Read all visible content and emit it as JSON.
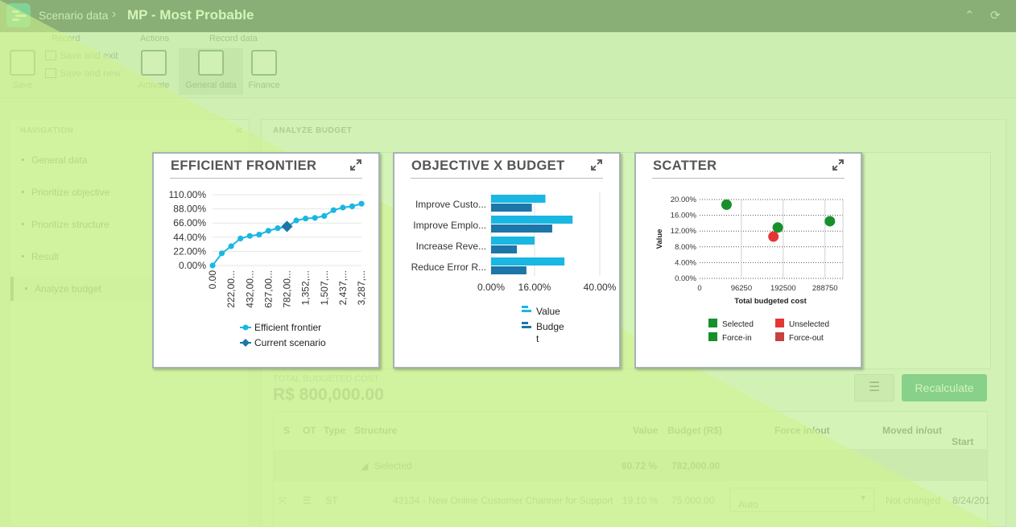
{
  "header": {
    "breadcrumb": "Scenario data",
    "title": "MP - Most Probable"
  },
  "ribbon": {
    "groups": [
      "Record",
      "Actions",
      "Record data"
    ],
    "save": "Save",
    "save_and_exit": "Save and exit",
    "save_and_new": "Save and new",
    "activate": "Activate",
    "general_data": "General data",
    "finance": "Finance"
  },
  "navigation": {
    "heading": "NAVIGATION",
    "items": [
      "General data",
      "Prioritize objective",
      "Prioritize structure",
      "Result",
      "Analyze budget"
    ],
    "active_index": 4
  },
  "main": {
    "heading": "ANALYZE BUDGET",
    "total_label": "TOTAL BUDGETED COST",
    "total_value": "R$ 800,000.00",
    "recalculate": "Recalculate",
    "table": {
      "headers": [
        "S",
        "OT",
        "Type",
        "Structure",
        "Value",
        "Budget (R$)",
        "Force in/out",
        "Moved in/out",
        "Start"
      ],
      "group": {
        "label": "Selected",
        "value": "60.72 %",
        "budget": "782,000.00"
      },
      "row": {
        "type": "ST",
        "structure": "43134 - New Online Customer Channer for Support",
        "value": "19.10 %",
        "budget": "75,000.00",
        "force": "Auto",
        "moved": "Not changed",
        "start": "8/24/201"
      }
    }
  },
  "overlay_color": "#b9ee8a",
  "accent": "#1ab7e2",
  "charts": {
    "frontier": {
      "title": "EFFICIENT FRONTIER",
      "y_ticks": [
        "110.00%",
        "88.00%",
        "66.00%",
        "44.00%",
        "22.00%",
        "0.00%"
      ],
      "x_ticks": [
        "0.00",
        "222,00...",
        "432,00...",
        "627,00...",
        "782,00...",
        "1,352,...",
        "1,507,...",
        "2,437,...",
        "3,287,..."
      ],
      "legend": [
        "Efficient frontier",
        "Current scenario"
      ]
    },
    "objective": {
      "title": "OBJECTIVE X BUDGET",
      "x_ticks": [
        "0.00%",
        "16.00%",
        "40.00%"
      ],
      "legend": [
        "Value",
        "Budget"
      ]
    },
    "scatter": {
      "title": "SCATTER",
      "ylabel": "Value",
      "xlabel": "Total budgeted cost",
      "y_ticks": [
        "20.00%",
        "16.00%",
        "12.00%",
        "8.00%",
        "4.00%",
        "0.00%"
      ],
      "x_ticks": [
        "0",
        "96250",
        "192500",
        "288750"
      ],
      "legend": [
        "Selected",
        "Unselected",
        "Force-in",
        "Force-out"
      ]
    }
  },
  "chart_data": [
    {
      "type": "line",
      "title": "EFFICIENT FRONTIER",
      "ylim": [
        0,
        110
      ],
      "y_unit": "%",
      "series": [
        {
          "name": "Efficient frontier",
          "values": [
            0,
            19,
            30,
            42,
            46,
            48,
            54,
            58,
            60,
            70,
            73,
            74,
            77,
            86,
            90,
            92,
            96
          ]
        },
        {
          "name": "Current scenario",
          "index": 8,
          "values": [
            60.72
          ]
        }
      ]
    },
    {
      "type": "bar",
      "title": "OBJECTIVE X BUDGET",
      "categories": [
        "Improve Custo...",
        "Improve Emplo...",
        "Increase Reve...",
        "Reduce Error R..."
      ],
      "xlim": [
        0,
        40
      ],
      "x_unit": "%",
      "series": [
        {
          "name": "Value",
          "values": [
            20,
            30,
            16,
            27
          ]
        },
        {
          "name": "Budget",
          "values": [
            15,
            22.5,
            9.5,
            13
          ]
        }
      ]
    },
    {
      "type": "scatter",
      "title": "SCATTER",
      "xlabel": "Total budgeted cost",
      "ylabel": "Value",
      "xlim": [
        0,
        330000
      ],
      "ylim": [
        0,
        20
      ],
      "points": [
        {
          "x": 62000,
          "y": 18.7,
          "status": "Selected"
        },
        {
          "x": 180000,
          "y": 12.9,
          "status": "Selected"
        },
        {
          "x": 300000,
          "y": 14.5,
          "status": "Selected"
        },
        {
          "x": 170000,
          "y": 10.6,
          "status": "Unselected"
        }
      ],
      "colors": {
        "Selected": "#17902a",
        "Unselected": "#e53535",
        "Force-in": "#17902a",
        "Force-out": "#c84040"
      }
    }
  ]
}
